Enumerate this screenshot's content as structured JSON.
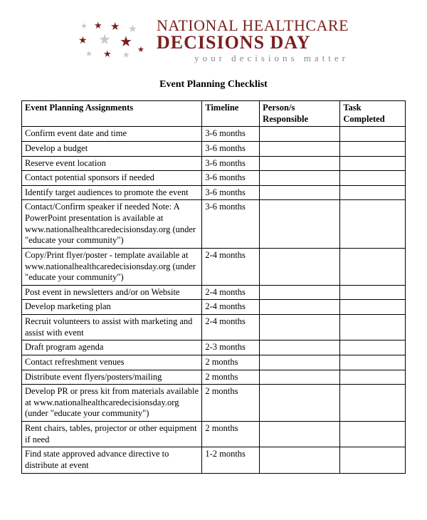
{
  "logo": {
    "line1": "NATIONAL HEALTHCARE",
    "line2": "DECISIONS DAY",
    "tagline": "your decisions matter",
    "star_colors": {
      "dark": "#7a1f1f",
      "light": "#c9c9c9"
    }
  },
  "title": "Event Planning Checklist",
  "headers": {
    "assignments": "Event Planning Assignments",
    "timeline": "Timeline",
    "person": "Person/s Responsible",
    "completed": "Task Completed"
  },
  "rows": [
    {
      "assignment": "Confirm event date and time",
      "timeline": "3-6 months",
      "person": "",
      "completed": ""
    },
    {
      "assignment": "Develop a budget",
      "timeline": "3-6 months",
      "person": "",
      "completed": ""
    },
    {
      "assignment": "Reserve event location",
      "timeline": "3-6 months",
      "person": "",
      "completed": ""
    },
    {
      "assignment": "Contact potential sponsors if needed",
      "timeline": "3-6 months",
      "person": "",
      "completed": ""
    },
    {
      "assignment": "Identify target audiences to promote the event",
      "timeline": "3-6 months",
      "person": "",
      "completed": ""
    },
    {
      "assignment": "Contact/Confirm speaker if needed\nNote: A PowerPoint presentation is available at www.nationalhealthcaredecisionsday.org (under \"educate your community\")",
      "timeline": "3-6 months",
      "person": "",
      "completed": ""
    },
    {
      "assignment": "Copy/Print flyer/poster -  template available at www.nationalhealthcaredecisionsday.org (under \"educate your community\")",
      "timeline": "2-4 months",
      "person": "",
      "completed": ""
    },
    {
      "assignment": "Post event in newsletters and/or on Website",
      "timeline": "2-4 months",
      "person": "",
      "completed": ""
    },
    {
      "assignment": "Develop marketing plan",
      "timeline": "2-4 months",
      "person": "",
      "completed": ""
    },
    {
      "assignment": "Recruit volunteers to assist with marketing and assist with event",
      "timeline": "2-4 months",
      "person": "",
      "completed": ""
    },
    {
      "assignment": "Draft program agenda",
      "timeline": "2-3 months",
      "person": "",
      "completed": ""
    },
    {
      "assignment": "Contact refreshment venues",
      "timeline": "2 months",
      "person": "",
      "completed": ""
    },
    {
      "assignment": "Distribute event flyers/posters/mailing",
      "timeline": "2 months",
      "person": "",
      "completed": ""
    },
    {
      "assignment": "Develop PR or press kit from materials available at www.nationalhealthcaredecisionsday.org (under \"educate your community\")",
      "timeline": "2 months",
      "person": "",
      "completed": ""
    },
    {
      "assignment": "Rent chairs, tables, projector or other equipment if need",
      "timeline": "2 months",
      "person": "",
      "completed": ""
    },
    {
      "assignment": "Find state approved advance directive to distribute at event",
      "timeline": "1-2 months",
      "person": "",
      "completed": ""
    }
  ]
}
